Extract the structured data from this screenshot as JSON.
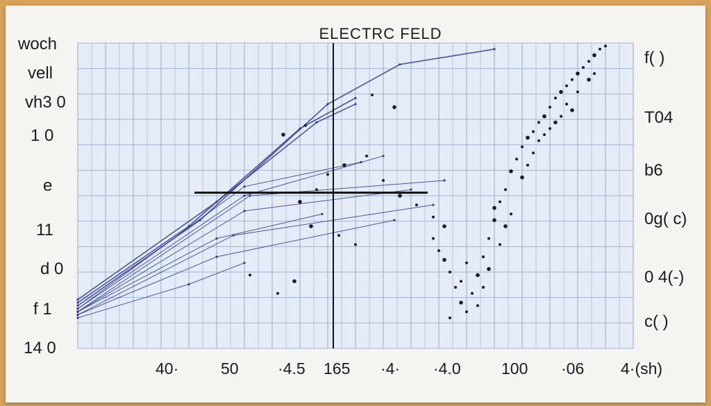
{
  "chart_data": {
    "type": "scatter",
    "title": "ELECTRC FELD",
    "left_tick_labels": [
      "woch",
      "vell",
      "vh3 0",
      "1 0",
      "e",
      "11",
      "d 0",
      "f 1",
      "14 0"
    ],
    "right_tick_labels": [
      "f( )",
      "T04",
      "b6",
      "0g( c)",
      "0 4(-)",
      "c( )"
    ],
    "x_tick_labels": [
      "40·",
      "50",
      "·4.5",
      "165",
      "·4·",
      "·4.0",
      "100",
      "·06",
      "4·(sh)"
    ],
    "xlim": [
      0,
      100
    ],
    "ylim": [
      0,
      100
    ],
    "grid": true,
    "series": [
      {
        "values": [
          {
            "x": 0,
            "y": 14
          },
          {
            "x": 22,
            "y": 42
          },
          {
            "x": 45,
            "y": 80
          },
          {
            "x": 58,
            "y": 93
          },
          {
            "x": 75,
            "y": 98
          }
        ]
      },
      {
        "values": [
          {
            "x": 0,
            "y": 15
          },
          {
            "x": 20,
            "y": 40
          },
          {
            "x": 40,
            "y": 72
          },
          {
            "x": 50,
            "y": 82
          }
        ]
      },
      {
        "values": [
          {
            "x": 0,
            "y": 16
          },
          {
            "x": 25,
            "y": 48
          },
          {
            "x": 43,
            "y": 74
          },
          {
            "x": 50,
            "y": 80
          }
        ]
      },
      {
        "values": [
          {
            "x": 0,
            "y": 13
          },
          {
            "x": 30,
            "y": 50
          },
          {
            "x": 55,
            "y": 63
          }
        ]
      },
      {
        "values": [
          {
            "x": 0,
            "y": 12
          },
          {
            "x": 30,
            "y": 45
          },
          {
            "x": 60,
            "y": 52
          }
        ]
      },
      {
        "values": [
          {
            "x": 0,
            "y": 11
          },
          {
            "x": 28,
            "y": 37
          },
          {
            "x": 64,
            "y": 47
          }
        ]
      },
      {
        "values": [
          {
            "x": 0,
            "y": 11
          },
          {
            "x": 25,
            "y": 30
          },
          {
            "x": 57,
            "y": 42
          }
        ]
      },
      {
        "values": [
          {
            "x": 0,
            "y": 10
          },
          {
            "x": 20,
            "y": 21
          },
          {
            "x": 30,
            "y": 28
          }
        ]
      },
      {
        "values": [
          {
            "x": 0,
            "y": 12
          },
          {
            "x": 25,
            "y": 36
          },
          {
            "x": 44,
            "y": 44
          }
        ]
      },
      {
        "values": [
          {
            "x": 0,
            "y": 12
          },
          {
            "x": 31,
            "y": 50
          },
          {
            "x": 66,
            "y": 55
          }
        ]
      },
      {
        "values": [
          {
            "x": 0,
            "y": 13
          },
          {
            "x": 30,
            "y": 53
          },
          {
            "x": 51,
            "y": 61
          }
        ]
      }
    ],
    "points": [
      {
        "x": 40,
        "y": 48
      },
      {
        "x": 43,
        "y": 52
      },
      {
        "x": 45,
        "y": 57
      },
      {
        "x": 48,
        "y": 60
      },
      {
        "x": 52,
        "y": 63
      },
      {
        "x": 55,
        "y": 55
      },
      {
        "x": 58,
        "y": 50
      },
      {
        "x": 61,
        "y": 47
      },
      {
        "x": 64,
        "y": 43
      },
      {
        "x": 42,
        "y": 40
      },
      {
        "x": 47,
        "y": 37
      },
      {
        "x": 50,
        "y": 34
      },
      {
        "x": 39,
        "y": 22
      },
      {
        "x": 31,
        "y": 24
      },
      {
        "x": 36,
        "y": 18
      },
      {
        "x": 37,
        "y": 70
      },
      {
        "x": 41,
        "y": 73
      },
      {
        "x": 53,
        "y": 83
      },
      {
        "x": 57,
        "y": 79
      },
      {
        "x": 64,
        "y": 36
      },
      {
        "x": 65,
        "y": 32
      },
      {
        "x": 66,
        "y": 29
      },
      {
        "x": 67,
        "y": 25
      },
      {
        "x": 68,
        "y": 20
      },
      {
        "x": 69,
        "y": 15
      },
      {
        "x": 70,
        "y": 12
      },
      {
        "x": 71,
        "y": 18
      },
      {
        "x": 72,
        "y": 24
      },
      {
        "x": 73,
        "y": 30
      },
      {
        "x": 74,
        "y": 36
      },
      {
        "x": 75,
        "y": 42
      },
      {
        "x": 76,
        "y": 48
      },
      {
        "x": 77,
        "y": 52
      },
      {
        "x": 78,
        "y": 58
      },
      {
        "x": 79,
        "y": 62
      },
      {
        "x": 80,
        "y": 66
      },
      {
        "x": 81,
        "y": 69
      },
      {
        "x": 82,
        "y": 71
      },
      {
        "x": 83,
        "y": 74
      },
      {
        "x": 84,
        "y": 76
      },
      {
        "x": 85,
        "y": 79
      },
      {
        "x": 86,
        "y": 82
      },
      {
        "x": 87,
        "y": 84
      },
      {
        "x": 88,
        "y": 86
      },
      {
        "x": 89,
        "y": 88
      },
      {
        "x": 90,
        "y": 90
      },
      {
        "x": 91,
        "y": 92
      },
      {
        "x": 92,
        "y": 94
      },
      {
        "x": 93,
        "y": 96
      },
      {
        "x": 94,
        "y": 98
      },
      {
        "x": 95,
        "y": 99
      },
      {
        "x": 66,
        "y": 40
      },
      {
        "x": 69,
        "y": 22
      },
      {
        "x": 72,
        "y": 14
      },
      {
        "x": 74,
        "y": 26
      },
      {
        "x": 76,
        "y": 34
      },
      {
        "x": 78,
        "y": 44
      },
      {
        "x": 80,
        "y": 56
      },
      {
        "x": 82,
        "y": 64
      },
      {
        "x": 84,
        "y": 70
      },
      {
        "x": 86,
        "y": 74
      },
      {
        "x": 88,
        "y": 80
      },
      {
        "x": 90,
        "y": 84
      },
      {
        "x": 92,
        "y": 88
      },
      {
        "x": 67,
        "y": 10
      },
      {
        "x": 73,
        "y": 20
      },
      {
        "x": 77,
        "y": 40
      },
      {
        "x": 81,
        "y": 60
      },
      {
        "x": 85,
        "y": 72
      },
      {
        "x": 89,
        "y": 78
      },
      {
        "x": 93,
        "y": 90
      },
      {
        "x": 70,
        "y": 28
      },
      {
        "x": 75,
        "y": 46
      },
      {
        "x": 83,
        "y": 68
      },
      {
        "x": 87,
        "y": 76
      }
    ],
    "reference_lines": {
      "vertical_x": 46,
      "horizontal_y": 51
    },
    "colors": {
      "series": "#2d3a9c",
      "points": "#1a1a2a",
      "grid": "#9fb5d8",
      "grid_fill": "#e6ecf6",
      "ref": "#111111"
    }
  }
}
